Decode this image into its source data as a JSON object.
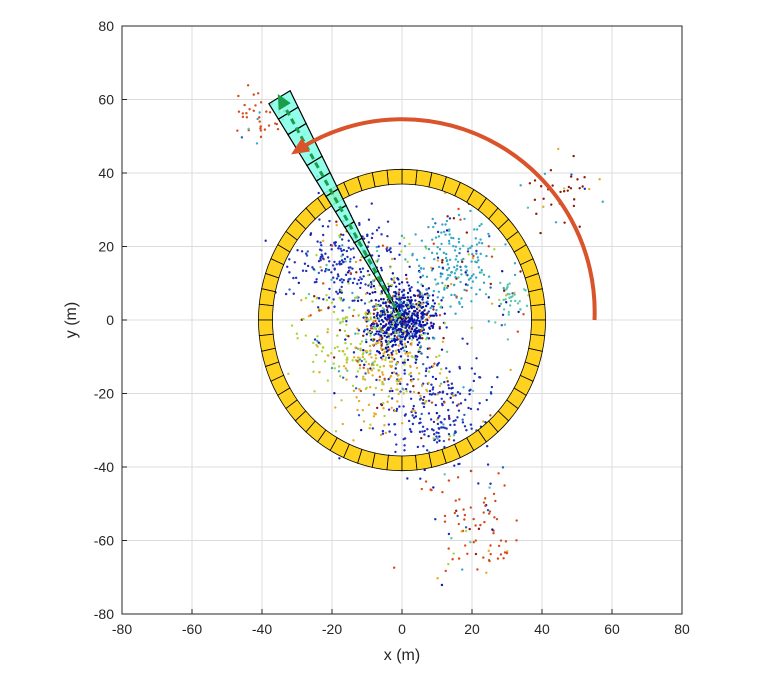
{
  "chart_data": {
    "type": "scatter",
    "xlabel": "x (m)",
    "ylabel": "y (m)",
    "xlim": [
      -80,
      80
    ],
    "ylim": [
      -80,
      80
    ],
    "xticks": [
      -80,
      -60,
      -40,
      -20,
      0,
      20,
      40,
      60,
      80
    ],
    "yticks": [
      -80,
      -60,
      -40,
      -20,
      0,
      20,
      40,
      60,
      80
    ],
    "grid": true,
    "ring": {
      "center": [
        0,
        0
      ],
      "inner_radius": 37,
      "outer_radius": 41,
      "sectors": 60,
      "fill_color": "#ffd21f",
      "highlighted_sector_color": "#000000",
      "highlighted_sector_angle_deg": 120
    },
    "sweep_arc": {
      "radius": 55,
      "start_angle_deg": 0,
      "end_angle_deg": 122,
      "color": "#d9532b"
    },
    "beam": {
      "angle_deg": 120,
      "start_radius": 0,
      "end_radius": 70,
      "half_width": 3.5,
      "segments": 14,
      "fill_color": "#7fffe8",
      "arrow_color": "#1a9e4a"
    },
    "point_cloud": {
      "colors": [
        "#1f2fb8",
        "#0b14a8",
        "#2460c8",
        "#35a8c8",
        "#58c8a8",
        "#a8d838",
        "#e8a828",
        "#d84818",
        "#8c1a0c"
      ],
      "clusters": [
        {
          "cx": 0,
          "cy": 0,
          "spread": 8,
          "count": 700,
          "color_index": 1
        },
        {
          "cx": -15,
          "cy": 15,
          "spread": 12,
          "count": 280,
          "color_index": 0
        },
        {
          "cx": 15,
          "cy": 15,
          "spread": 11,
          "count": 220,
          "color_index": 3
        },
        {
          "cx": 10,
          "cy": -25,
          "spread": 14,
          "count": 260,
          "color_index": 0
        },
        {
          "cx": -10,
          "cy": -5,
          "spread": 14,
          "count": 240,
          "color_index": 5
        },
        {
          "cx": -5,
          "cy": -15,
          "spread": 12,
          "count": 160,
          "color_index": 6
        },
        {
          "cx": 20,
          "cy": -55,
          "spread": 12,
          "count": 90,
          "color_index": 7
        },
        {
          "cx": -40,
          "cy": 55,
          "spread": 6,
          "count": 40,
          "color_index": 7
        },
        {
          "cx": 45,
          "cy": 35,
          "spread": 8,
          "count": 40,
          "color_index": 8
        },
        {
          "cx": 30,
          "cy": 5,
          "spread": 6,
          "count": 50,
          "color_index": 4
        }
      ]
    }
  }
}
